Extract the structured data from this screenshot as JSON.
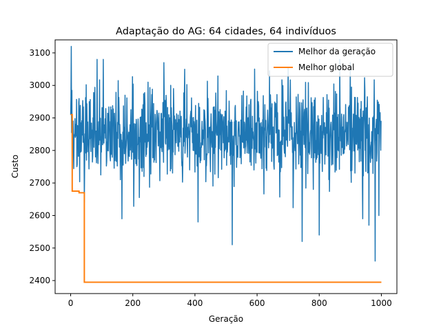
{
  "chart_data": {
    "type": "line",
    "title": "Adaptação do AG: 64 cidades, 64 indivíduos",
    "xlabel": "Geração",
    "ylabel": "Custo",
    "xlim": [
      -50,
      1050
    ],
    "ylim": [
      2360,
      3140
    ],
    "xticks": [
      0,
      200,
      400,
      600,
      800,
      1000
    ],
    "yticks": [
      2400,
      2500,
      2600,
      2700,
      2800,
      2900,
      3000,
      3100
    ],
    "grid": false,
    "legend_position": "top-right",
    "series": [
      {
        "name": "Melhor da geração",
        "color": "#1f77b4",
        "generator": {
          "count": 1000,
          "mean": 2850,
          "spread": 70,
          "min": 2460,
          "max": 3120,
          "seed": 17
        },
        "anchors": [
          [
            0,
            2910
          ],
          [
            2,
            3120
          ],
          [
            5,
            2720
          ],
          [
            44,
            2640
          ],
          [
            85,
            3080
          ],
          [
            105,
            3080
          ],
          [
            165,
            2590
          ],
          [
            300,
            3070
          ],
          [
            410,
            2580
          ],
          [
            520,
            2510
          ],
          [
            640,
            3045
          ],
          [
            700,
            3055
          ],
          [
            745,
            2520
          ],
          [
            800,
            2540
          ],
          [
            830,
            2955
          ],
          [
            860,
            2880
          ],
          [
            900,
            3070
          ],
          [
            940,
            2590
          ],
          [
            960,
            2570
          ],
          [
            980,
            2460
          ],
          [
            992,
            2600
          ],
          [
            1000,
            2775
          ]
        ]
      },
      {
        "name": "Melhor global",
        "color": "#ff7f0e",
        "x": [
          0,
          5,
          5,
          27,
          27,
          44,
          44,
          1000
        ],
        "y": [
          2910,
          2910,
          2675,
          2675,
          2670,
          2670,
          2395,
          2395
        ]
      }
    ]
  }
}
